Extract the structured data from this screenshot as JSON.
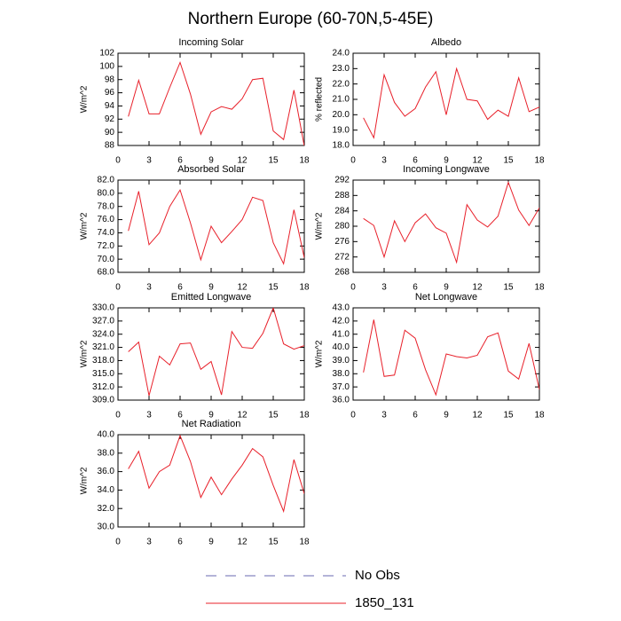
{
  "title": "Northern Europe (60-70N,5-45E)",
  "legend": [
    {
      "name": "No Obs",
      "color": "#6a6ab0",
      "dash": true
    },
    {
      "name": "1850_131",
      "color": "#e8202a",
      "dash": false
    }
  ],
  "chart_data": [
    {
      "type": "line",
      "title": "Incoming Solar",
      "ylabel": "W/m^2",
      "color": "#e8202a",
      "x": [
        1,
        2,
        3,
        4,
        5,
        6,
        7,
        8,
        9,
        10,
        11,
        12,
        13,
        14,
        15,
        16,
        17,
        18
      ],
      "values": [
        92.4,
        97.9,
        92.8,
        92.8,
        96.8,
        100.6,
        95.8,
        89.7,
        93.1,
        93.9,
        93.5,
        95.1,
        98.0,
        98.2,
        90.2,
        88.9,
        96.4,
        87.9
      ],
      "xlim": [
        0,
        18
      ],
      "xticks": [
        0,
        3,
        6,
        9,
        12,
        15,
        18
      ],
      "ylim": [
        88,
        102
      ],
      "yticks": [
        88,
        90,
        92,
        94,
        96,
        98,
        100,
        102
      ]
    },
    {
      "type": "line",
      "title": "Albedo",
      "ylabel": "% reflected",
      "color": "#e8202a",
      "x": [
        1,
        2,
        3,
        4,
        5,
        6,
        7,
        8,
        9,
        10,
        11,
        12,
        13,
        14,
        15,
        16,
        17,
        18
      ],
      "values": [
        19.8,
        18.5,
        22.6,
        20.8,
        19.9,
        20.4,
        21.8,
        22.8,
        20.0,
        23.0,
        21.0,
        20.9,
        19.7,
        20.3,
        19.9,
        22.4,
        20.2,
        20.5
      ],
      "xlim": [
        0,
        18
      ],
      "xticks": [
        0,
        3,
        6,
        9,
        12,
        15,
        18
      ],
      "ylim": [
        18,
        24
      ],
      "yticks": [
        {
          "value": 18,
          "label": "18.0"
        },
        {
          "value": 19,
          "label": "19.0"
        },
        {
          "value": 20,
          "label": "20.0"
        },
        {
          "value": 21,
          "label": "21.0"
        },
        {
          "value": 22,
          "label": "22.0"
        },
        {
          "value": 23,
          "label": "23.0"
        },
        {
          "value": 24,
          "label": "24.0"
        }
      ]
    },
    {
      "type": "line",
      "title": "Absorbed Solar",
      "ylabel": "W/m^2",
      "color": "#e8202a",
      "x": [
        1,
        2,
        3,
        4,
        5,
        6,
        7,
        8,
        9,
        10,
        11,
        12,
        13,
        14,
        15,
        16,
        17,
        18
      ],
      "values": [
        74.3,
        80.3,
        72.2,
        74.0,
        78.0,
        80.5,
        75.5,
        69.9,
        75.0,
        72.5,
        74.2,
        76.0,
        79.4,
        78.9,
        72.5,
        69.3,
        77.5,
        70.2
      ],
      "xlim": [
        0,
        18
      ],
      "xticks": [
        0,
        3,
        6,
        9,
        12,
        15,
        18
      ],
      "ylim": [
        68,
        82
      ],
      "yticks": [
        {
          "value": 68,
          "label": "68.0"
        },
        {
          "value": 70,
          "label": "70.0"
        },
        {
          "value": 72,
          "label": "72.0"
        },
        {
          "value": 74,
          "label": "74.0"
        },
        {
          "value": 76,
          "label": "76.0"
        },
        {
          "value": 78,
          "label": "78.0"
        },
        {
          "value": 80,
          "label": "80.0"
        },
        {
          "value": 82,
          "label": "82.0"
        }
      ]
    },
    {
      "type": "line",
      "title": "Incoming Longwave",
      "ylabel": "W/m^2",
      "color": "#e8202a",
      "x": [
        1,
        2,
        3,
        4,
        5,
        6,
        7,
        8,
        9,
        10,
        11,
        12,
        13,
        14,
        15,
        16,
        17,
        18
      ],
      "values": [
        282.0,
        280.2,
        272.0,
        281.4,
        276.0,
        280.9,
        283.2,
        279.6,
        278.2,
        270.6,
        285.6,
        281.6,
        279.8,
        282.6,
        291.4,
        284.2,
        280.2,
        284.8
      ],
      "xlim": [
        0,
        18
      ],
      "xticks": [
        0,
        3,
        6,
        9,
        12,
        15,
        18
      ],
      "ylim": [
        268,
        292
      ],
      "yticks": [
        268,
        272,
        276,
        280,
        284,
        288,
        292
      ]
    },
    {
      "type": "line",
      "title": "Emitted Longwave",
      "ylabel": "W/m^2",
      "color": "#e8202a",
      "x": [
        1,
        2,
        3,
        4,
        5,
        6,
        7,
        8,
        9,
        10,
        11,
        12,
        13,
        14,
        15,
        16,
        17,
        18
      ],
      "values": [
        320.0,
        322.2,
        310.0,
        319.0,
        317.0,
        321.8,
        322.0,
        316.0,
        317.8,
        310.2,
        324.6,
        321.0,
        320.8,
        324.2,
        330.0,
        321.8,
        320.6,
        321.4
      ],
      "xlim": [
        0,
        18
      ],
      "xticks": [
        0,
        3,
        6,
        9,
        12,
        15,
        18
      ],
      "ylim": [
        309,
        330
      ],
      "yticks": [
        {
          "value": 309,
          "label": "309.0"
        },
        {
          "value": 312,
          "label": "312.0"
        },
        {
          "value": 315,
          "label": "315.0"
        },
        {
          "value": 318,
          "label": "318.0"
        },
        {
          "value": 321,
          "label": "321.0"
        },
        {
          "value": 324,
          "label": "324.0"
        },
        {
          "value": 327,
          "label": "327.0"
        },
        {
          "value": 330,
          "label": "330.0"
        }
      ]
    },
    {
      "type": "line",
      "title": "Net Longwave",
      "ylabel": "W/m^2",
      "color": "#e8202a",
      "x": [
        1,
        2,
        3,
        4,
        5,
        6,
        7,
        8,
        9,
        10,
        11,
        12,
        13,
        14,
        15,
        16,
        17,
        18
      ],
      "values": [
        38.1,
        42.1,
        37.8,
        37.9,
        41.3,
        40.7,
        38.3,
        36.4,
        39.5,
        39.3,
        39.2,
        39.4,
        40.8,
        41.1,
        38.2,
        37.6,
        40.3,
        36.8
      ],
      "xlim": [
        0,
        18
      ],
      "xticks": [
        0,
        3,
        6,
        9,
        12,
        15,
        18
      ],
      "ylim": [
        36,
        43
      ],
      "yticks": [
        {
          "value": 36,
          "label": "36.0"
        },
        {
          "value": 37,
          "label": "37.0"
        },
        {
          "value": 38,
          "label": "38.0"
        },
        {
          "value": 39,
          "label": "39.0"
        },
        {
          "value": 40,
          "label": "40.0"
        },
        {
          "value": 41,
          "label": "41.0"
        },
        {
          "value": 42,
          "label": "42.0"
        },
        {
          "value": 43,
          "label": "43.0"
        }
      ]
    },
    {
      "type": "line",
      "title": "Net Radiation",
      "ylabel": "W/m^2",
      "color": "#e8202a",
      "x": [
        1,
        2,
        3,
        4,
        5,
        6,
        7,
        8,
        9,
        10,
        11,
        12,
        13,
        14,
        15,
        16,
        17,
        18
      ],
      "values": [
        36.3,
        38.2,
        34.2,
        36.0,
        36.7,
        39.9,
        37.1,
        33.2,
        35.4,
        33.5,
        35.2,
        36.7,
        38.5,
        37.6,
        34.5,
        31.7,
        37.3,
        33.6
      ],
      "xlim": [
        0,
        18
      ],
      "xticks": [
        0,
        3,
        6,
        9,
        12,
        15,
        18
      ],
      "ylim": [
        30,
        40
      ],
      "yticks": [
        {
          "value": 30,
          "label": "30.0"
        },
        {
          "value": 32,
          "label": "32.0"
        },
        {
          "value": 34,
          "label": "34.0"
        },
        {
          "value": 36,
          "label": "36.0"
        },
        {
          "value": 38,
          "label": "38.0"
        },
        {
          "value": 40,
          "label": "40.0"
        }
      ]
    }
  ]
}
